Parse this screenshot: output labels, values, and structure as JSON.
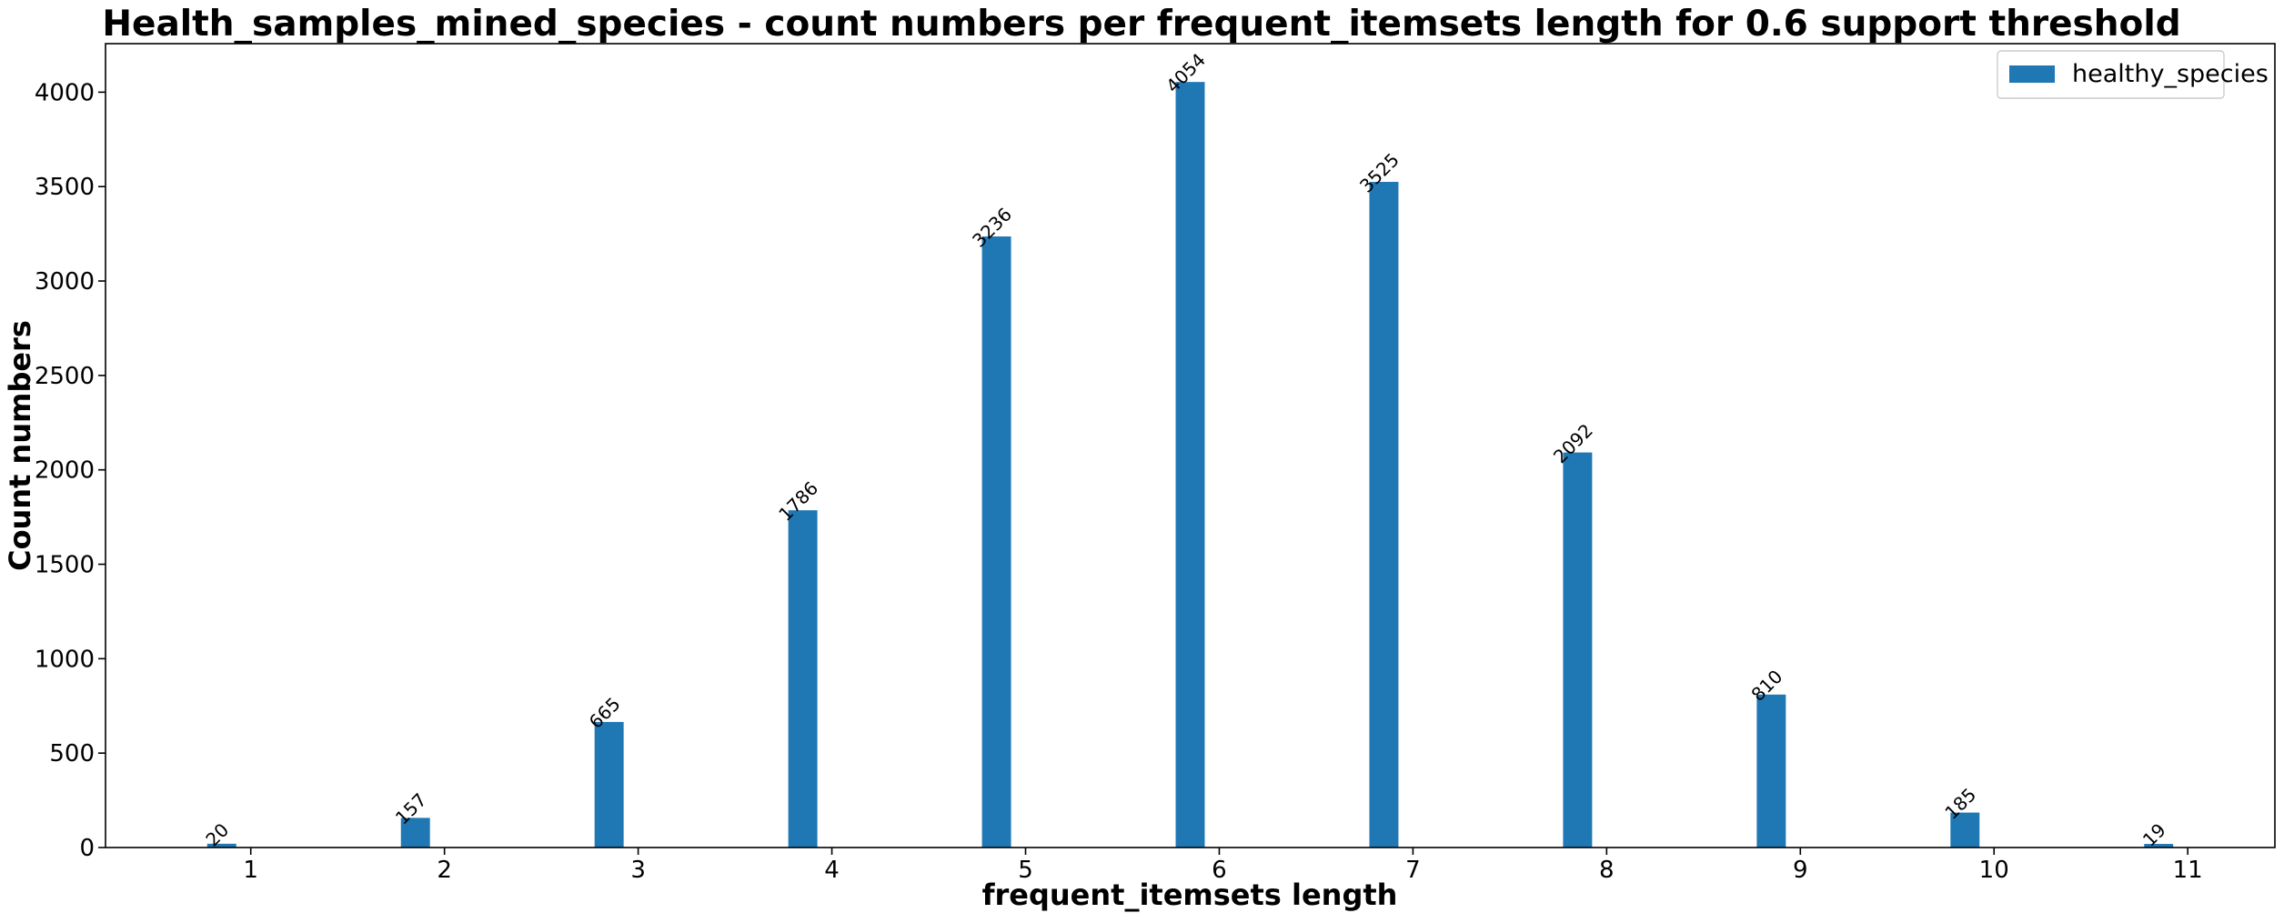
{
  "chart_data": {
    "type": "bar",
    "title": "Health_samples_mined_species - count numbers per frequent_itemsets length for 0.6 support threshold",
    "xlabel": "frequent_itemsets length",
    "ylabel": "Count numbers",
    "categories": [
      "1",
      "2",
      "3",
      "4",
      "5",
      "6",
      "7",
      "8",
      "9",
      "10",
      "11"
    ],
    "series": [
      {
        "name": "healthy_species",
        "color": "#1f77b4",
        "values": [
          20,
          157,
          665,
          1786,
          3236,
          4054,
          3525,
          2092,
          810,
          185,
          19
        ],
        "labels": [
          "20",
          "157",
          "665",
          "1786",
          "3236",
          "4054",
          "3525",
          "2092",
          "810",
          "185",
          "19"
        ]
      }
    ],
    "yticks": [
      "0",
      "500",
      "1000",
      "1500",
      "2000",
      "2500",
      "3000",
      "3500",
      "4000"
    ],
    "ylim": [
      0,
      4257
    ],
    "xlim": [
      0.25,
      11.45
    ],
    "bar_offset": -0.15,
    "bar_width": 0.15,
    "legend_position": "upper right",
    "grid": false
  }
}
